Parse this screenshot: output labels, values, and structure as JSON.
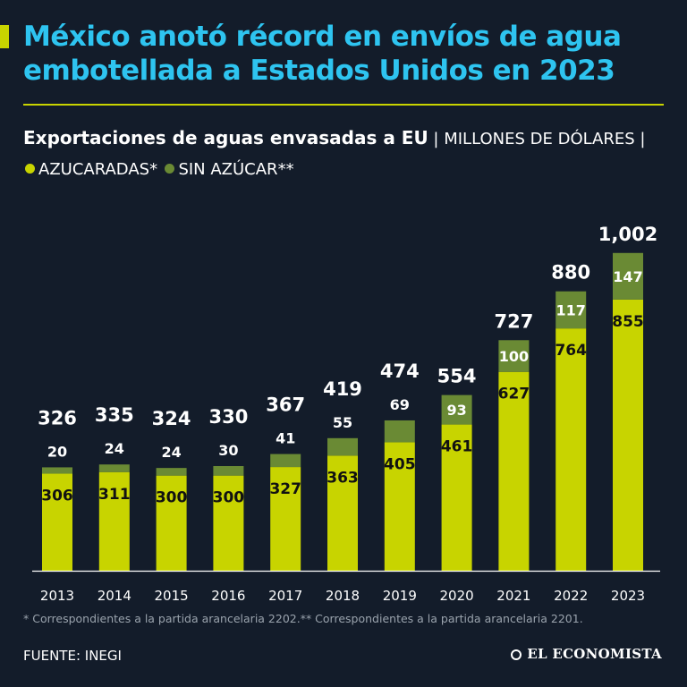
{
  "header": {
    "title": "México anotó récord en envíos de agua embotellada a Estados Unidos en 2023"
  },
  "subtitle": {
    "main": "Exportaciones de aguas envasadas a EU",
    "separator": " | ",
    "unit": "MILLONES DE DÓLARES",
    "legend_sep": " | ",
    "legend_a": "AZUCARADAS*",
    "legend_b": "SIN AZÚCAR**"
  },
  "colors": {
    "background": "#131c2a",
    "title": "#2ec4f0",
    "azucaradas": "#c8d400",
    "sin_azucar": "#6a8a34",
    "axis": "#ffffff"
  },
  "chart_data": {
    "type": "bar",
    "stacked": true,
    "title": "Exportaciones de aguas envasadas a EU",
    "ylabel": "Millones de dólares",
    "xlabel": "",
    "categories": [
      "2013",
      "2014",
      "2015",
      "2016",
      "2017",
      "2018",
      "2019",
      "2020",
      "2021",
      "2022",
      "2023"
    ],
    "series": [
      {
        "name": "AZUCARADAS*",
        "values": [
          306,
          311,
          300,
          300,
          327,
          363,
          405,
          461,
          627,
          764,
          855
        ]
      },
      {
        "name": "SIN AZÚCAR**",
        "values": [
          20,
          24,
          24,
          30,
          41,
          55,
          69,
          93,
          100,
          117,
          147
        ]
      }
    ],
    "totals": [
      "326",
      "335",
      "324",
      "330",
      "367",
      "419",
      "474",
      "554",
      "727",
      "880",
      "1,002"
    ],
    "ylim": [
      0,
      1002
    ]
  },
  "footer": {
    "footnote": "* Correspondientes a la partida arancelaria 2202.** Correspondientes a la partida arancelaria 2201.",
    "source": "FUENTE: INEGI",
    "brand": "EL ECONOMISTA"
  }
}
